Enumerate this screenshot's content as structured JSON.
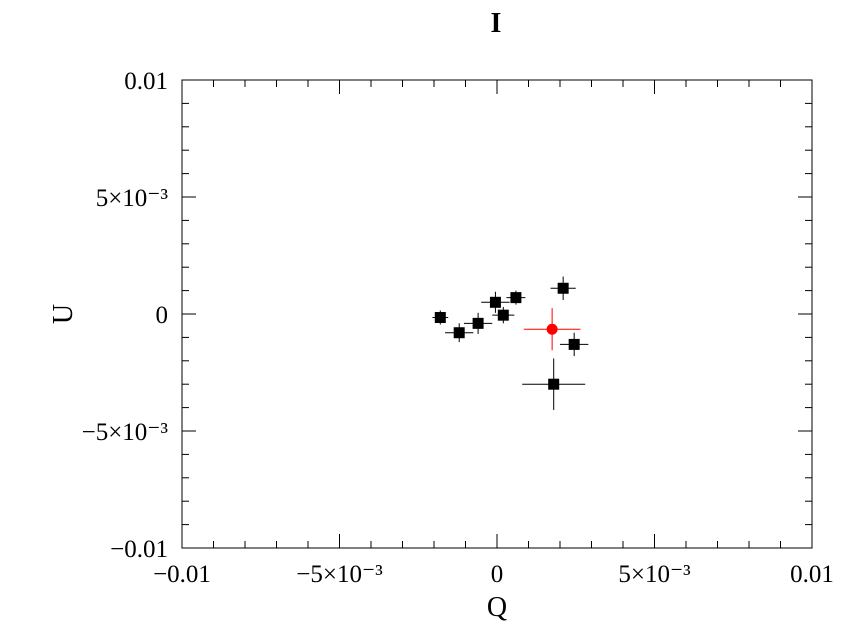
{
  "chart_data": {
    "type": "scatter",
    "title": "I",
    "xlabel": "Q",
    "ylabel": "U",
    "xlim": [
      -0.01,
      0.01
    ],
    "ylim": [
      -0.01,
      0.01
    ],
    "grid": false,
    "x_ticks": [
      {
        "value": -0.01,
        "label": "−0.01"
      },
      {
        "value": -0.005,
        "label": "−5×10⁻³"
      },
      {
        "value": 0,
        "label": "0"
      },
      {
        "value": 0.005,
        "label": "5×10⁻³"
      },
      {
        "value": 0.01,
        "label": "0.01"
      }
    ],
    "y_ticks": [
      {
        "value": 0.01,
        "label": "0.01"
      },
      {
        "value": 0.005,
        "label": "5×10⁻³"
      },
      {
        "value": 0,
        "label": "0"
      },
      {
        "value": -0.005,
        "label": "−5×10⁻³"
      },
      {
        "value": -0.01,
        "label": "−0.01"
      }
    ],
    "series": [
      {
        "color": "#000000",
        "marker": "square",
        "points": [
          {
            "x": -0.0018,
            "y": -0.00015,
            "xerr": 0.00025,
            "yerr": 0.0003
          },
          {
            "x": -0.0012,
            "y": -0.0008,
            "xerr": 0.00045,
            "yerr": 0.0004
          },
          {
            "x": -0.0006,
            "y": -0.0004,
            "xerr": 0.00045,
            "yerr": 0.00045
          },
          {
            "x": -5e-05,
            "y": 0.0005,
            "xerr": 0.00045,
            "yerr": 0.00045
          },
          {
            "x": 0.0002,
            "y": -5e-05,
            "xerr": 0.00035,
            "yerr": 0.00035
          },
          {
            "x": 0.0006,
            "y": 0.0007,
            "xerr": 0.0003,
            "yerr": 0.0003
          },
          {
            "x": 0.0018,
            "y": -0.003,
            "xerr": 0.001,
            "yerr": 0.0011
          },
          {
            "x": 0.0021,
            "y": 0.0011,
            "xerr": 0.0004,
            "yerr": 0.0005
          },
          {
            "x": 0.00245,
            "y": -0.0013,
            "xerr": 0.00045,
            "yerr": 0.0005
          }
        ]
      },
      {
        "color": "#ff0000",
        "marker": "circle",
        "points": [
          {
            "x": 0.00175,
            "y": -0.00065,
            "xerr": 0.0009,
            "yerr": 0.0009
          }
        ]
      }
    ]
  }
}
